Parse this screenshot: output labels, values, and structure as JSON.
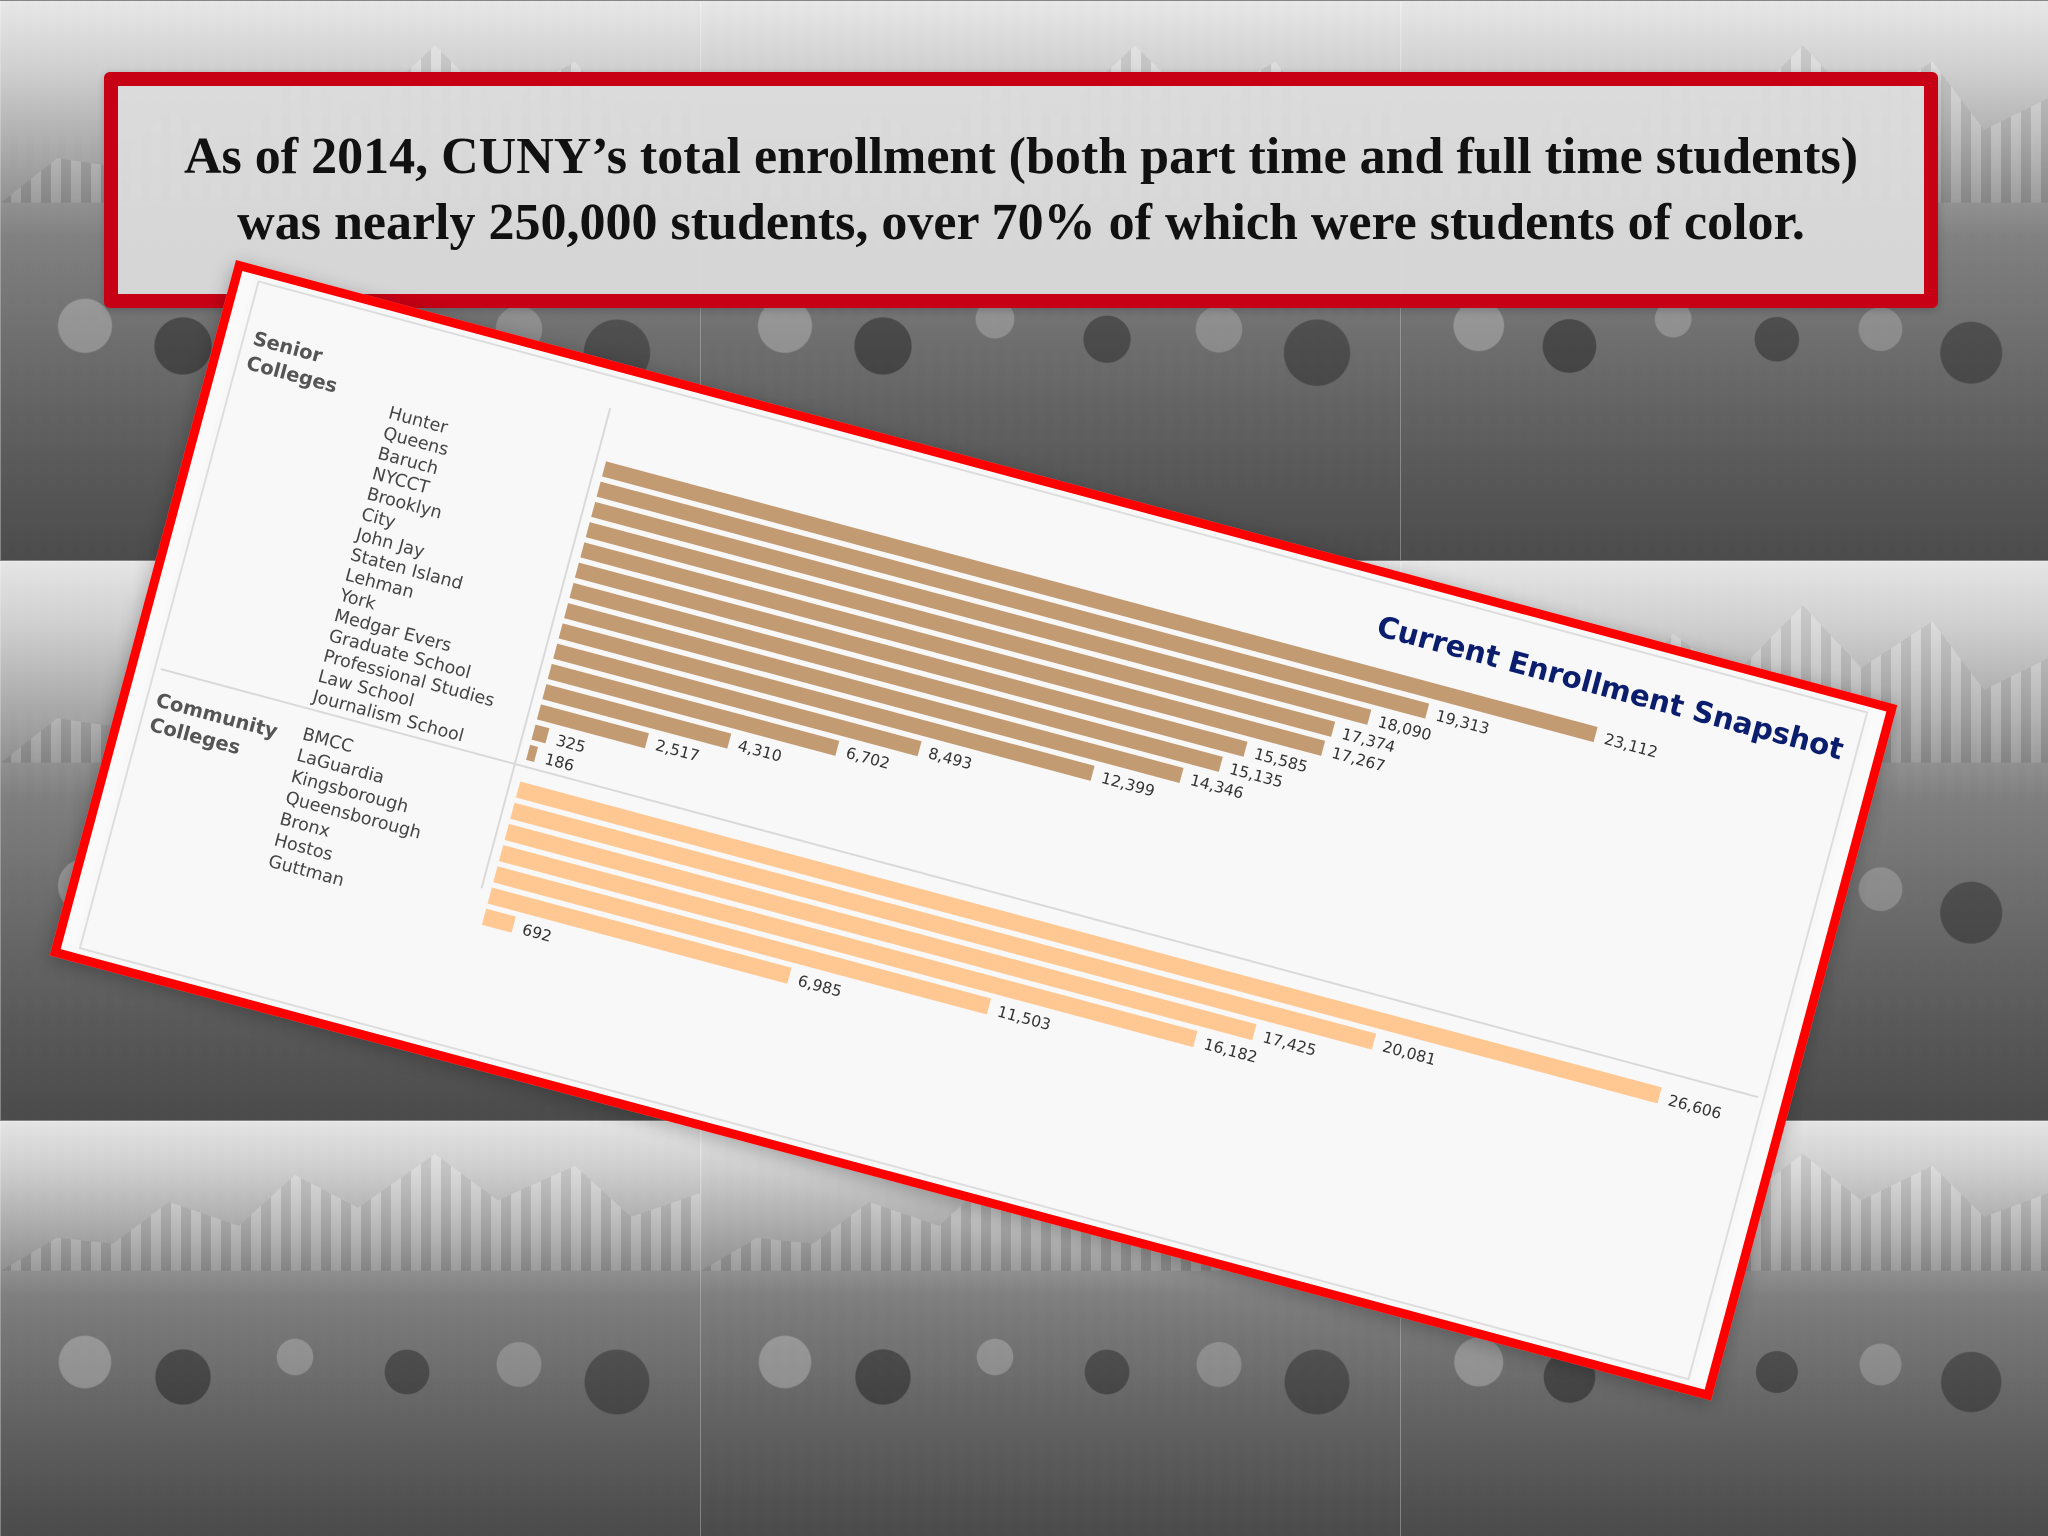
{
  "slide": {
    "headline": "As of 2014, CUNY’s total enrollment (both part time and full time students) was nearly 250,000 students, over 70% of which were students of color."
  },
  "chart_data": {
    "type": "bar",
    "title": "Current Enrollment Snapshot",
    "groups": [
      {
        "name": "Senior Colleges",
        "color": "#c39b73",
        "categories": [
          "Hunter",
          "Queens",
          "Baruch",
          "NYCCT",
          "Brooklyn",
          "City",
          "John Jay",
          "Staten Island",
          "Lehman",
          "York",
          "Medgar Evers",
          "Graduate School",
          "Professional Studies",
          "Law School",
          "Journalism School"
        ],
        "values": [
          23112,
          19313,
          18090,
          17374,
          17267,
          15585,
          15135,
          14346,
          12399,
          8493,
          6702,
          4310,
          2517,
          325,
          186
        ],
        "labels": [
          "23,112",
          "19,313",
          "18,090",
          "17,374",
          "17,267",
          "15,585",
          "15,135",
          "14,346",
          "12,399",
          "8,493",
          "6,702",
          "4,310",
          "2,517",
          "325",
          "186"
        ]
      },
      {
        "name": "Community Colleges",
        "color": "#ffc893",
        "categories": [
          "BMCC",
          "LaGuardia",
          "Kingsborough",
          "Queensborough",
          "Bronx",
          "Hostos",
          "Guttman"
        ],
        "values": [
          26606,
          20081,
          17425,
          16182,
          11503,
          6985,
          692
        ],
        "labels": [
          "26,606",
          "20,081",
          "17,425",
          "16,182",
          "11,503",
          "6,985",
          "692"
        ]
      }
    ]
  }
}
